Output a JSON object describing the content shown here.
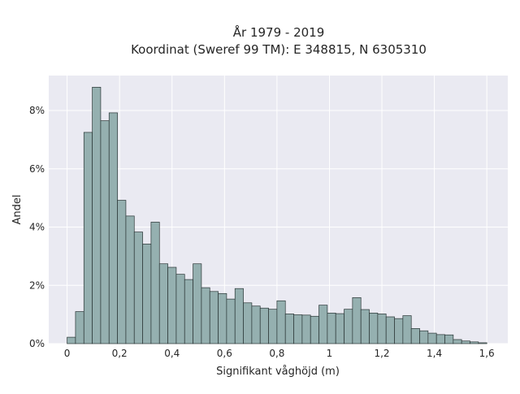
{
  "chart_data": {
    "type": "bar",
    "title_lines": [
      "År 1979 - 2019",
      "Koordinat (Sweref 99 TM): E 348815, N 6305310"
    ],
    "xlabel": "Signifikant våghöjd (m)",
    "ylabel": "Andel",
    "xlim": [
      -0.07,
      1.68
    ],
    "ylim": [
      0,
      9.2
    ],
    "x_ticks": [
      0,
      0.2,
      0.4,
      0.6,
      0.8,
      1,
      1.2,
      1.4,
      1.6
    ],
    "x_tick_labels": [
      "0",
      "0,2",
      "0,4",
      "0,6",
      "0,8",
      "1",
      "1,2",
      "1,4",
      "1,6"
    ],
    "y_ticks": [
      0,
      2,
      4,
      6,
      8
    ],
    "y_tick_labels": [
      "0%",
      "2%",
      "4%",
      "6%",
      "8%"
    ],
    "bin_width": 0.032,
    "bin_start": 0.0,
    "values": [
      0.22,
      1.1,
      7.25,
      8.8,
      7.65,
      7.92,
      4.92,
      4.38,
      3.83,
      3.42,
      4.17,
      2.74,
      2.62,
      2.38,
      2.2,
      2.74,
      1.92,
      1.79,
      1.72,
      1.53,
      1.89,
      1.4,
      1.29,
      1.22,
      1.18,
      1.47,
      1.02,
      0.99,
      0.98,
      0.94,
      1.32,
      1.05,
      1.03,
      1.18,
      1.58,
      1.17,
      1.05,
      1.02,
      0.92,
      0.86,
      0.96,
      0.52,
      0.44,
      0.36,
      0.31,
      0.3,
      0.14,
      0.09,
      0.06,
      0.03
    ],
    "grid": true,
    "colors": {
      "bar_fill": "#95b0b0",
      "bar_edge": "#2a3535",
      "plot_background": "#eaeaf2",
      "grid": "#ffffff"
    }
  }
}
